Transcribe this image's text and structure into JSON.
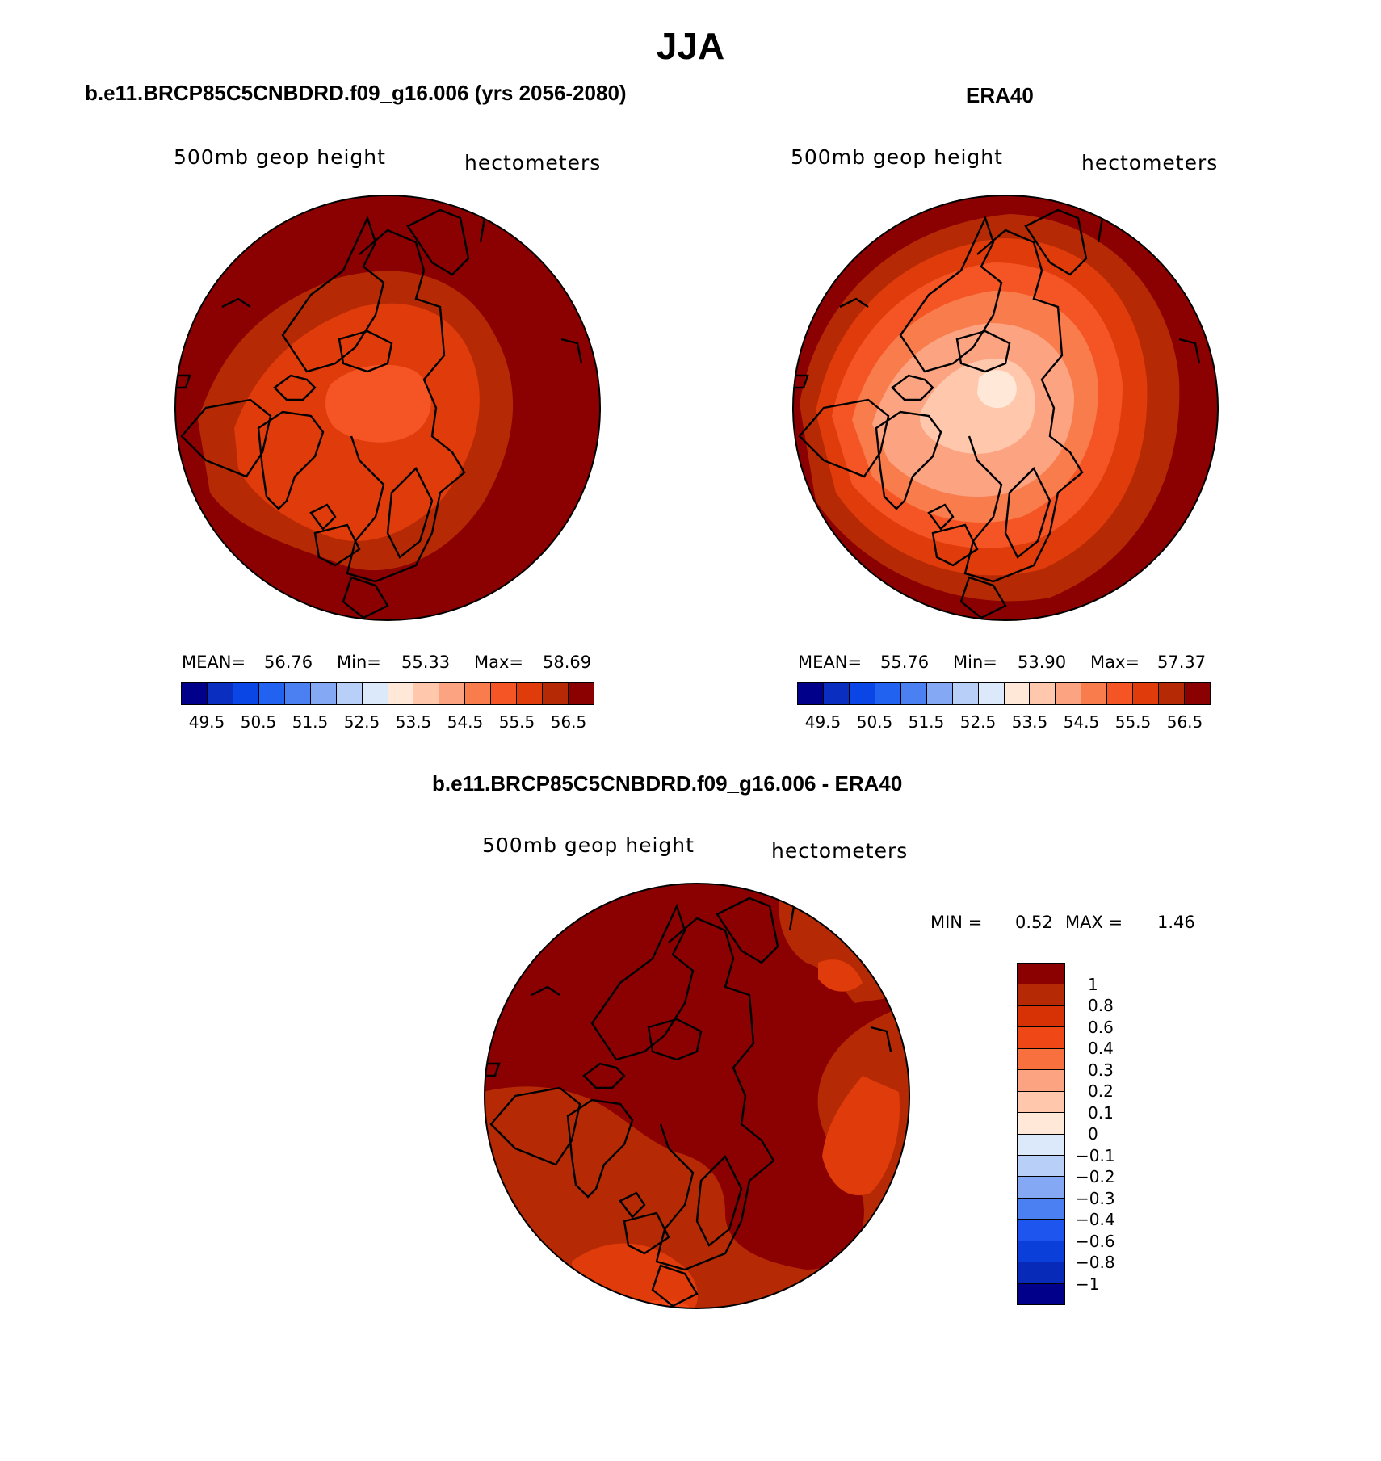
{
  "title": "JJA",
  "palette_abs": [
    "#00008b",
    "#0a2fc0",
    "#0a46e6",
    "#2262f0",
    "#4a80f2",
    "#84a8f4",
    "#b8cff8",
    "#dbe9fa",
    "#ffe8d8",
    "#ffc8ad",
    "#fca482",
    "#f97c4c",
    "#f55525",
    "#e03b0a",
    "#b52a05",
    "#8b0000"
  ],
  "palette_diff": [
    "#8b0000",
    "#b52a05",
    "#d73206",
    "#ef4715",
    "#f8703e",
    "#fca482",
    "#ffc8ad",
    "#ffe8d8",
    "#dbe9fa",
    "#b8cff8",
    "#84a8f4",
    "#4a80f2",
    "#1e55ee",
    "#0a3fda",
    "#082ab8",
    "#00008b"
  ],
  "panels": {
    "model": {
      "title": "b.e11.BRCP85C5CNBDRD.f09_g16.006 (yrs 2056-2080)",
      "variable": "500mb geop height",
      "units": "hectometers",
      "mean_label": "MEAN=",
      "mean": "56.76",
      "min_label": "Min=",
      "min": "55.33",
      "max_label": "Max=",
      "max": "58.69"
    },
    "obs": {
      "title": "ERA40",
      "variable": "500mb geop height",
      "units": "hectometers",
      "mean_label": "MEAN=",
      "mean": "55.76",
      "min_label": "Min=",
      "min": "53.90",
      "max_label": "Max=",
      "max": "57.37"
    },
    "diff": {
      "title": "b.e11.BRCP85C5CNBDRD.f09_g16.006 - ERA40",
      "variable": "500mb geop height",
      "units": "hectometers",
      "min_label": "MIN =",
      "min": "0.52",
      "max_label": "MAX =",
      "max": "1.46"
    }
  },
  "colorbar_abs_ticks": [
    "49.5",
    "50.5",
    "51.5",
    "52.5",
    "53.5",
    "54.5",
    "55.5",
    "56.5"
  ],
  "colorbar_diff_ticks": [
    "1",
    "0.8",
    "0.6",
    "0.4",
    "0.3",
    "0.2",
    "0.1",
    "0",
    "−0.1",
    "−0.2",
    "−0.3",
    "−0.4",
    "−0.6",
    "−0.8",
    "−1"
  ]
}
